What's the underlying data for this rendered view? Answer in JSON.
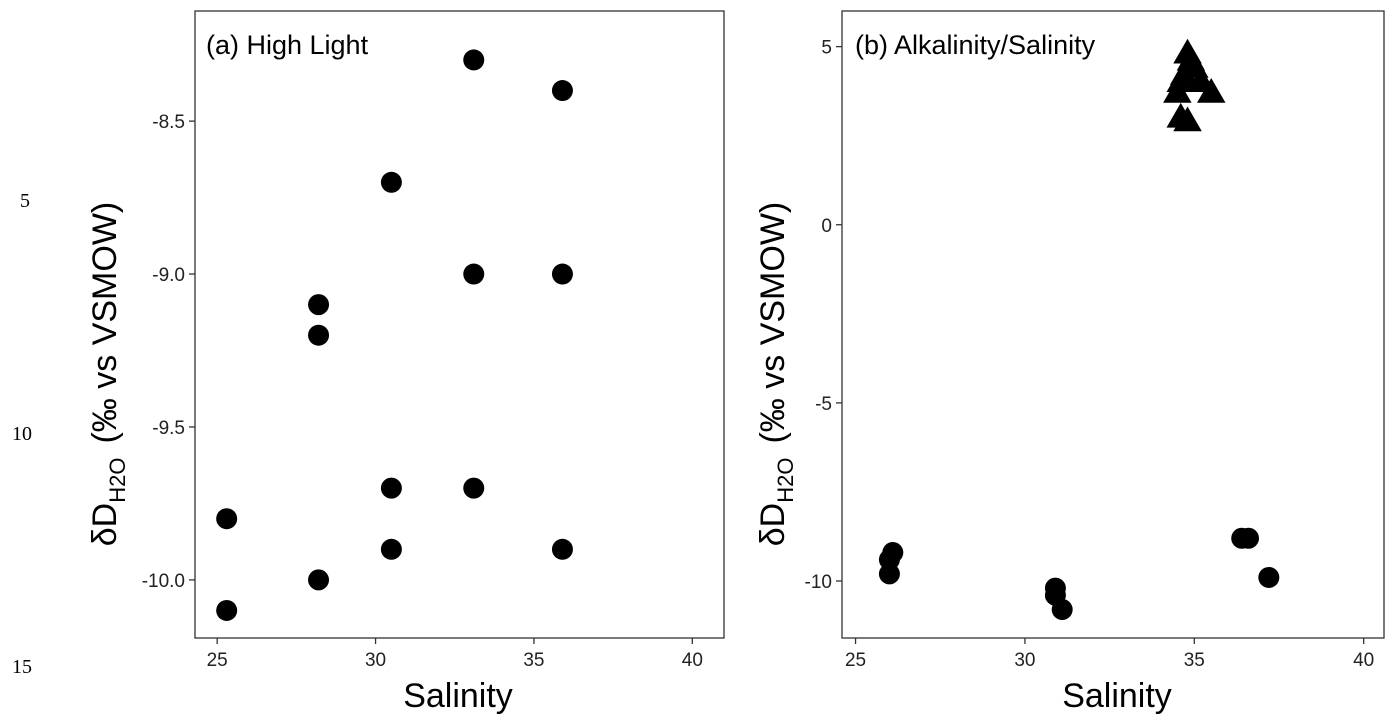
{
  "line_numbers": [
    "5",
    "10",
    "15"
  ],
  "chart_data": [
    {
      "type": "scatter",
      "title": "(a) High Light",
      "xlabel": "Salinity",
      "ylabel": {
        "symbol": "δD",
        "subscript": "H2O",
        "units": "(‰ vs VSMOW)"
      },
      "xlim": [
        24.3,
        41.0
      ],
      "ylim": [
        -10.19,
        -8.14
      ],
      "xticks": [
        25,
        30,
        35,
        40
      ],
      "yticks": [
        -8.5,
        -9.0,
        -9.5,
        -10.0
      ],
      "ytick_labels": [
        "-8.5",
        "-9.0",
        "-9.5",
        "-10.0"
      ],
      "grid": false,
      "series": [
        {
          "marker": "circle",
          "color": "#000000",
          "points": [
            {
              "x": 25.3,
              "y": -9.8
            },
            {
              "x": 25.3,
              "y": -10.1
            },
            {
              "x": 28.2,
              "y": -9.1
            },
            {
              "x": 28.2,
              "y": -9.2
            },
            {
              "x": 28.2,
              "y": -10.0
            },
            {
              "x": 30.5,
              "y": -8.7
            },
            {
              "x": 30.5,
              "y": -9.7
            },
            {
              "x": 30.5,
              "y": -9.9
            },
            {
              "x": 33.1,
              "y": -8.3
            },
            {
              "x": 33.1,
              "y": -9.0
            },
            {
              "x": 33.1,
              "y": -9.7
            },
            {
              "x": 35.9,
              "y": -8.4
            },
            {
              "x": 35.9,
              "y": -9.0
            },
            {
              "x": 35.9,
              "y": -9.9
            }
          ]
        }
      ]
    },
    {
      "type": "scatter",
      "title": "(b) Alkalinity/Salinity",
      "xlabel": "Salinity",
      "ylabel": {
        "symbol": "δD",
        "subscript": "H2O",
        "units": "(‰ vs VSMOW)"
      },
      "xlim": [
        24.6,
        40.6
      ],
      "ylim": [
        -11.6,
        6.0
      ],
      "xticks": [
        25,
        30,
        35,
        40
      ],
      "yticks": [
        5,
        0,
        -5,
        -10
      ],
      "ytick_labels": [
        "5",
        "0",
        "-5",
        "-10"
      ],
      "grid": false,
      "series": [
        {
          "marker": "circle",
          "color": "#000000",
          "points": [
            {
              "x": 26.0,
              "y": -9.8
            },
            {
              "x": 26.0,
              "y": -9.4
            },
            {
              "x": 26.1,
              "y": -9.2
            },
            {
              "x": 30.9,
              "y": -10.2
            },
            {
              "x": 30.9,
              "y": -10.4
            },
            {
              "x": 31.1,
              "y": -10.8
            },
            {
              "x": 36.4,
              "y": -8.8
            },
            {
              "x": 36.6,
              "y": -8.8
            },
            {
              "x": 37.2,
              "y": -9.9
            }
          ]
        },
        {
          "marker": "triangle",
          "color": "#000000",
          "points": [
            {
              "x": 34.8,
              "y": 4.8
            },
            {
              "x": 34.9,
              "y": 4.6
            },
            {
              "x": 35.0,
              "y": 4.4
            },
            {
              "x": 34.7,
              "y": 4.2
            },
            {
              "x": 34.6,
              "y": 4.0
            },
            {
              "x": 35.2,
              "y": 4.0
            },
            {
              "x": 35.5,
              "y": 3.7
            },
            {
              "x": 34.5,
              "y": 3.7
            },
            {
              "x": 34.6,
              "y": 3.0
            },
            {
              "x": 34.8,
              "y": 2.9
            }
          ]
        }
      ]
    }
  ]
}
